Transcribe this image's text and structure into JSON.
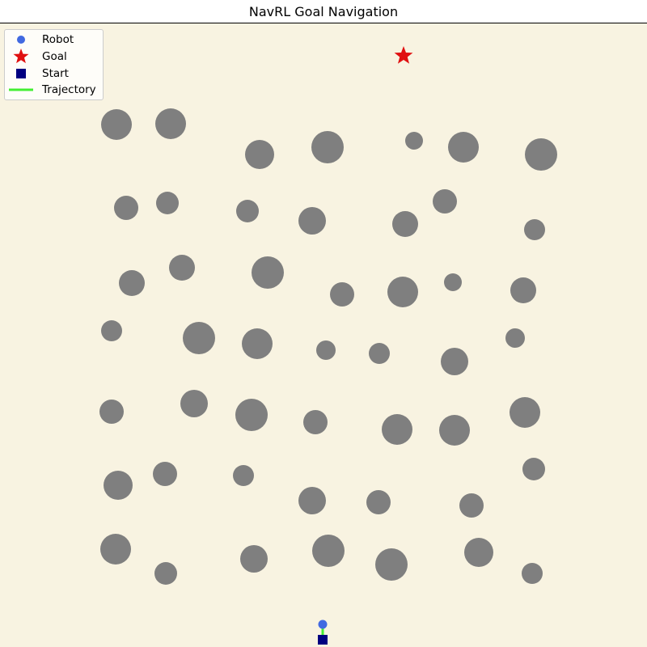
{
  "title": "NavRL Goal Navigation",
  "colors": {
    "background": "#f8f3e1",
    "obstacle": "#7f7f7f",
    "robot": "#4169e1",
    "goal": "#e01010",
    "start": "#000080",
    "trajectory": "#44ee33"
  },
  "legend": {
    "items": [
      {
        "key": "robot",
        "label": "Robot",
        "icon": "circle-marker"
      },
      {
        "key": "goal",
        "label": "Goal",
        "icon": "star-marker"
      },
      {
        "key": "start",
        "label": "Start",
        "icon": "square-marker"
      },
      {
        "key": "trajectory",
        "label": "Trajectory",
        "icon": "line-marker"
      }
    ]
  }
}
